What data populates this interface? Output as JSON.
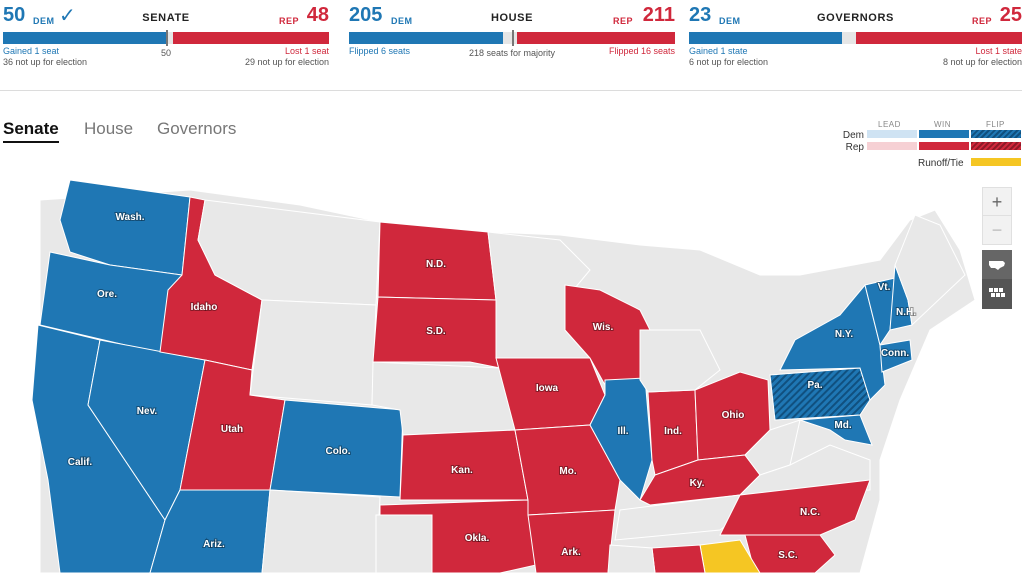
{
  "scoreboard": {
    "senate": {
      "title": "SENATE",
      "dem_count": "50",
      "dem_tag": "DEM",
      "check": "✓",
      "rep_tag": "REP",
      "rep_count": "48",
      "dem_note1": "Gained 1 seat",
      "dem_note2": "36 not up for election",
      "center_note": "50",
      "rep_note1": "Lost 1 seat",
      "rep_note2": "29 not up for election",
      "dem_share": 0.5,
      "rep_share": 0.48
    },
    "house": {
      "title": "HOUSE",
      "dem_count": "205",
      "dem_tag": "DEM",
      "rep_tag": "REP",
      "rep_count": "211",
      "dem_note1": "Flipped 6 seats",
      "center_note": "218 seats for majority",
      "rep_note1": "Flipped 16 seats",
      "dem_share": 0.471,
      "rep_share": 0.485
    },
    "governors": {
      "title": "GOVERNORS",
      "dem_count": "23",
      "dem_tag": "DEM",
      "rep_tag": "REP",
      "rep_count": "25",
      "dem_note1": "Gained 1 state",
      "dem_note2": "6 not up for election",
      "rep_note1": "Lost 1 state",
      "rep_note2": "8 not up for election",
      "dem_share": 0.46,
      "rep_share": 0.5
    }
  },
  "tabs": [
    "Senate",
    "House",
    "Governors"
  ],
  "legend": {
    "headers": [
      "LEAD",
      "WIN",
      "FLIP"
    ],
    "rows": [
      "Dem",
      "Rep"
    ],
    "runoff": "Runoff/Tie"
  },
  "controls": {
    "zoom_in": "+",
    "zoom_out": "−"
  },
  "colors": {
    "dem": "#1f77b4",
    "dem_lead": "#cfe3f3",
    "dem_flip": "#10507f",
    "rep": "#d0283c",
    "rep_lead": "#f6d0d4",
    "rep_flip": "#8e1a28",
    "runoff": "#f5c623",
    "none": "#e8e8e8"
  },
  "state_labels": {
    "wa": "Wash.",
    "or": "Ore.",
    "ca": "Calif.",
    "nv": "Nev.",
    "id": "Idaho",
    "ut": "Utah",
    "co": "Colo.",
    "az": "Ariz.",
    "nd": "N.D.",
    "sd": "S.D.",
    "ks": "Kan.",
    "ok": "Okla.",
    "ia": "Iowa",
    "mo": "Mo.",
    "ar": "Ark.",
    "wi": "Wis.",
    "il": "Ill.",
    "in": "Ind.",
    "oh": "Ohio",
    "ky": "Ky.",
    "pa": "Pa.",
    "ny": "N.Y.",
    "vt": "Vt.",
    "nh": "N.H.",
    "ct": "Conn.",
    "md": "Md.",
    "nc": "N.C.",
    "sc": "S.C."
  }
}
